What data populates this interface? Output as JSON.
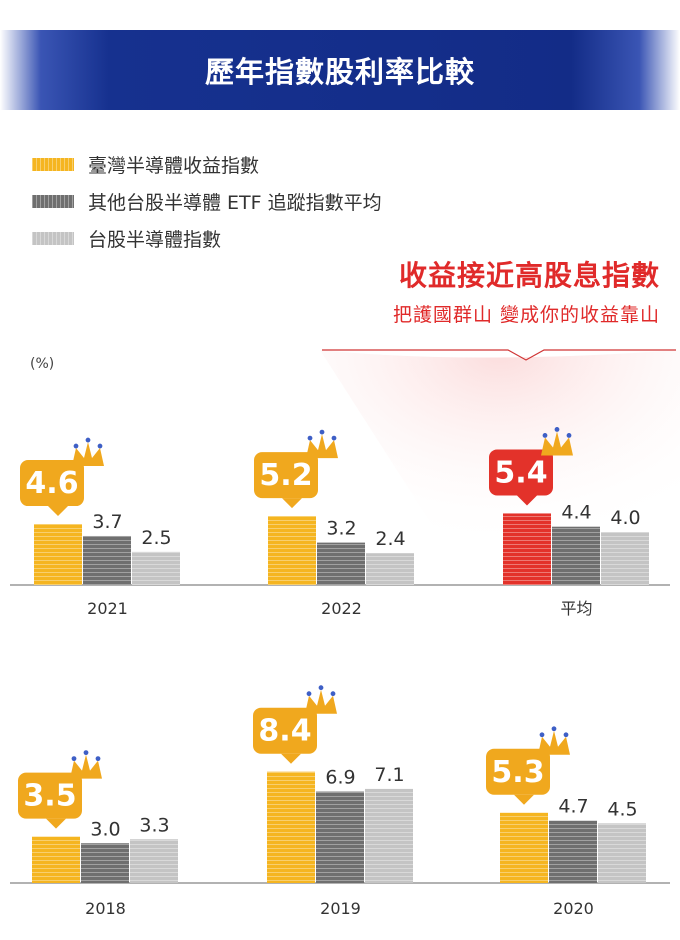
{
  "title": "歷年指數股利率比較",
  "legend": [
    {
      "label": "臺灣半導體收益指數",
      "color": "#f5b520"
    },
    {
      "label": "其他台股半導體 ETF 追蹤指數平均",
      "color": "#6f6f6f"
    },
    {
      "label": "台股半導體指數",
      "color": "#c4c4c4"
    }
  ],
  "callout": {
    "title": "收益接近高股息指數",
    "subtitle": "把護國群山 變成你的收益靠山"
  },
  "chart_data": {
    "type": "bar",
    "unit": "(%)",
    "categories": [
      "2021",
      "2022",
      "平均",
      "2018",
      "2019",
      "2020"
    ],
    "series": [
      {
        "name": "臺灣半導體收益指數",
        "values": [
          4.6,
          5.2,
          5.4,
          3.5,
          8.4,
          5.3
        ]
      },
      {
        "name": "其他台股半導體 ETF 追蹤指數平均",
        "values": [
          3.7,
          3.2,
          4.4,
          3.0,
          6.9,
          4.7
        ]
      },
      {
        "name": "台股半導體指數",
        "values": [
          2.5,
          2.4,
          4.0,
          3.3,
          7.1,
          4.5
        ]
      }
    ],
    "value_labels": [
      [
        "4.6",
        "3.7",
        "2.5"
      ],
      [
        "5.2",
        "3.2",
        "2.4"
      ],
      [
        "5.4",
        "4.4",
        "4.0"
      ],
      [
        "3.5",
        "3.0",
        "3.3"
      ],
      [
        "8.4",
        "6.9",
        "7.1"
      ],
      [
        "5.3",
        "4.7",
        "4.5"
      ]
    ],
    "highlight_category": "平均",
    "colors": {
      "primary": "#f5b520",
      "highlight": "#e3322a",
      "series2": "#6f6f6f",
      "series3": "#c4c4c4",
      "badge_text": "#ffffff",
      "crown": "#f0a81e",
      "crown_dot": "#3e5fc6"
    }
  }
}
